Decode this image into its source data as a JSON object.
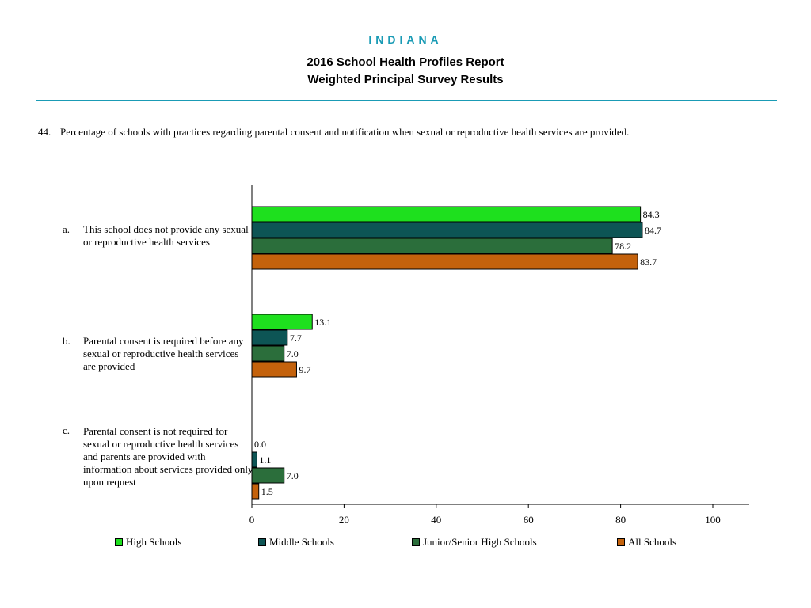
{
  "header": {
    "state": "INDIANA",
    "title": "2016 School Health Profiles Report",
    "subtitle": "Weighted Principal Survey Results"
  },
  "question": {
    "number": "44.",
    "text": "Percentage of schools with practices regarding parental consent and notification when sexual or reproductive health services are provided."
  },
  "chart_data": {
    "type": "bar",
    "orientation": "horizontal",
    "categories": [
      {
        "letter": "a.",
        "label": "This school does not provide any sexual or reproductive health services"
      },
      {
        "letter": "b.",
        "label": "Parental consent is required before any sexual or reproductive health services are provided"
      },
      {
        "letter": "c.",
        "label": "Parental consent is not required for sexual or reproductive health services and parents are provided with information about services provided only upon request"
      }
    ],
    "series": [
      {
        "name": "High Schools",
        "color": "#1ee01e",
        "values": [
          84.3,
          13.1,
          0.0
        ]
      },
      {
        "name": "Middle Schools",
        "color": "#0d5555",
        "values": [
          84.7,
          7.7,
          1.1
        ]
      },
      {
        "name": "Junior/Senior High Schools",
        "color": "#2b6e3b",
        "values": [
          78.2,
          7.0,
          7.0
        ]
      },
      {
        "name": "All Schools",
        "color": "#c4620c",
        "values": [
          83.7,
          9.7,
          1.5
        ]
      }
    ],
    "xlim": [
      0,
      100
    ],
    "xticks": [
      "0",
      "20",
      "40",
      "60",
      "80",
      "100"
    ],
    "value_labels": [
      [
        "84.3",
        "84.7",
        "78.2",
        "83.7"
      ],
      [
        "13.1",
        "7.7",
        "7.0",
        "9.7"
      ],
      [
        "0.0",
        "1.1",
        "7.0",
        "1.5"
      ]
    ],
    "legend_position": "bottom",
    "grid": false
  }
}
